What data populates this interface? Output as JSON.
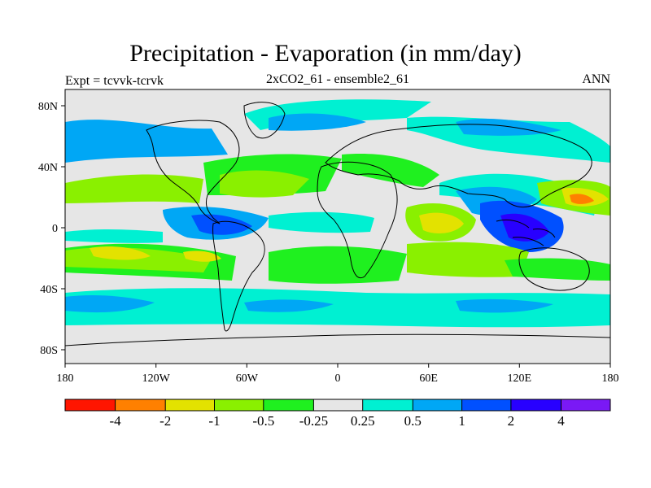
{
  "title": "Precipitation - Evaporation (in mm/day)",
  "subtitle": "2xCO2_61 - ensemble2_61",
  "left_label": "Expt = tcvvk-tcrvk",
  "right_label": "ANN",
  "colors": {
    "neg_4": "#ff1500",
    "neg_2": "#ff8000",
    "neg_1": "#e3e200",
    "neg_05": "#8af000",
    "neg_025": "#1ff01f",
    "zero": "#e6e6e6",
    "pos_025": "#00f0d2",
    "pos_05": "#00a7f5",
    "pos_1": "#0050ff",
    "pos_2": "#2800ff",
    "pos_4": "#7a19f5"
  },
  "chart_data": {
    "type": "heatmap",
    "map": "global filled contour map of change in precipitation minus evaporation",
    "units": "mm/day",
    "lon_range": [
      -180,
      180
    ],
    "lat_range": [
      -90,
      90
    ],
    "x_ticks": [
      "180",
      "120W",
      "60W",
      "0",
      "60E",
      "120E",
      "180"
    ],
    "y_ticks": [
      "80N",
      "40N",
      "0",
      "40S",
      "80S"
    ],
    "colorbar_labels": [
      "-4",
      "-2",
      "-1",
      "-0.5",
      "-0.25",
      "0.25",
      "0.5",
      "1",
      "2",
      "4"
    ],
    "colorbar_bins": 11
  }
}
